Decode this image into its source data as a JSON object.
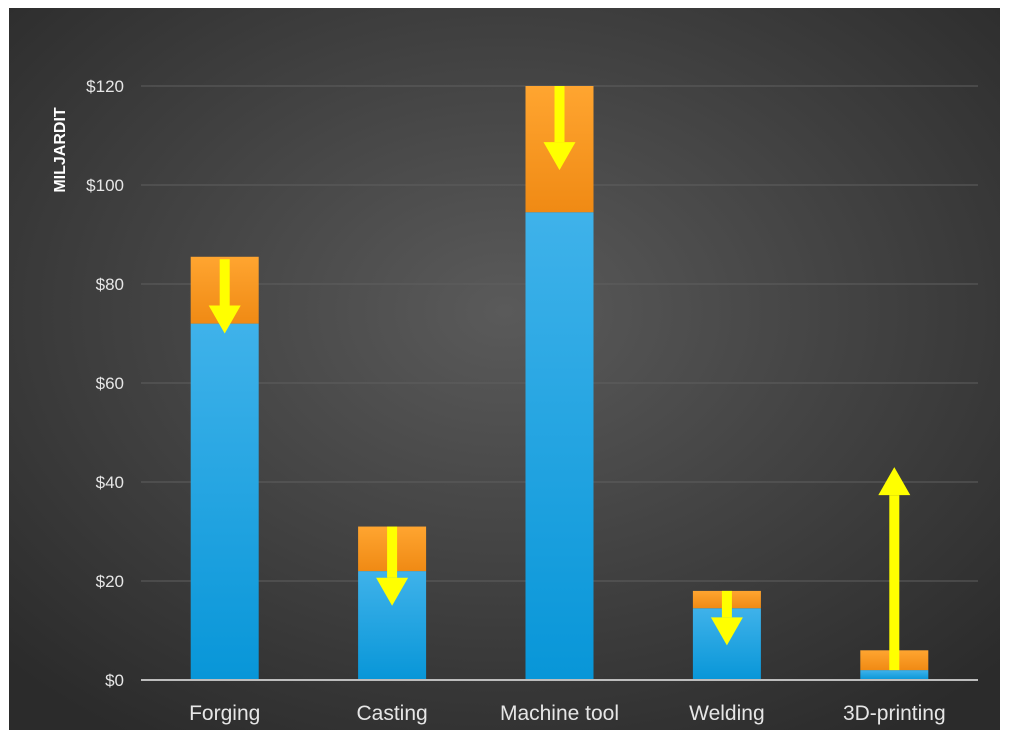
{
  "chart_data": {
    "type": "bar",
    "stacked": true,
    "categories": [
      "Forging",
      "Casting",
      "Machine tool",
      "Welding",
      "3D-printing"
    ],
    "series": [
      {
        "values": [
          72,
          22,
          94.5,
          14.5,
          2
        ],
        "color": "#1fa8e6"
      },
      {
        "values": [
          13.5,
          9,
          25.5,
          3.5,
          4
        ],
        "color": "#f7931e"
      }
    ],
    "trend_arrows": [
      {
        "category": "Forging",
        "from": 85,
        "to": 70,
        "direction": "down"
      },
      {
        "category": "Casting",
        "from": 31,
        "to": 15,
        "direction": "down"
      },
      {
        "category": "Machine tool",
        "from": 120,
        "to": 103,
        "direction": "down"
      },
      {
        "category": "Welding",
        "from": 18,
        "to": 7,
        "direction": "down"
      },
      {
        "category": "3D-printing",
        "from": 2,
        "to": 43,
        "direction": "up"
      }
    ],
    "arrow_color": "#ffff00",
    "ylabel": "MILJARDIT",
    "ylim": [
      0,
      120
    ],
    "yticks": [
      0,
      20,
      40,
      60,
      80,
      100,
      120
    ],
    "ytick_labels": [
      "$0",
      "$20",
      "$40",
      "$60",
      "$80",
      "$100",
      "$120"
    ],
    "grid": true,
    "background": "#3a3a3a"
  }
}
